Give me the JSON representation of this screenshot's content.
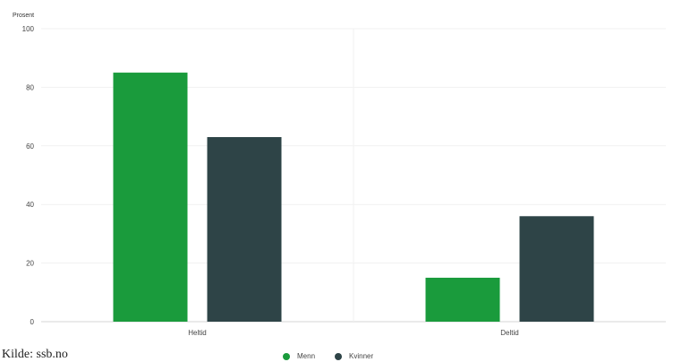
{
  "chart_data": {
    "type": "bar",
    "title": "",
    "ylabel": "Prosent",
    "xlabel": "",
    "ylim": [
      0,
      100
    ],
    "yticks": [
      0,
      20,
      40,
      60,
      80,
      100
    ],
    "categories": [
      "Heltid",
      "Deltid"
    ],
    "series": [
      {
        "name": "Menn",
        "values": [
          85,
          15
        ],
        "color": "#1a9b3c"
      },
      {
        "name": "Kvinner",
        "values": [
          63,
          36
        ],
        "color": "#2e4447"
      }
    ],
    "grid": true,
    "legend_position": "bottom"
  },
  "source_text": "Kilde: ssb.no"
}
